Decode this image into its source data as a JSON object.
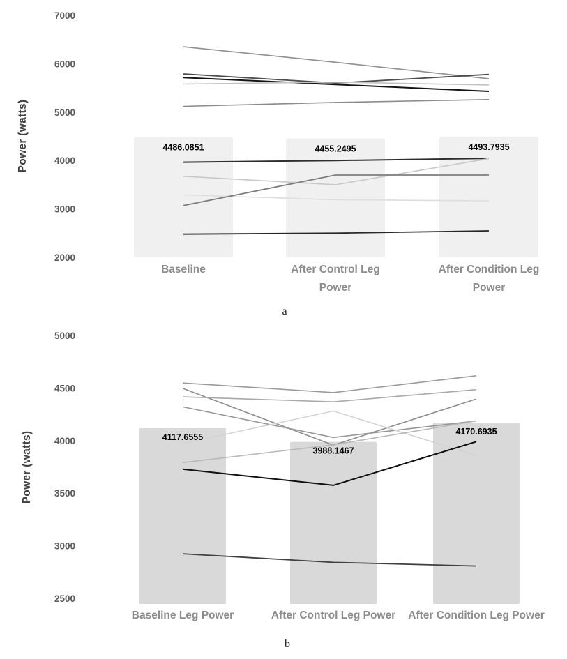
{
  "figure": {
    "background": "#ffffff",
    "captions": {
      "a": "a",
      "b": "b"
    }
  },
  "chart_data": [
    {
      "type": "combo-bar-line",
      "caption": "a",
      "ylabel": "Power (watts)",
      "ylim": [
        2000,
        7000
      ],
      "yticks": [
        7000,
        6000,
        5000,
        4000,
        3000,
        2000
      ],
      "grid": false,
      "legend": "none",
      "categories": [
        "Baseline",
        "After Control Leg Power",
        "After Condition Leg Power"
      ],
      "category_label_lines": [
        [
          "Baseline"
        ],
        [
          "After Control Leg",
          "Power"
        ],
        [
          "After Condition Leg",
          "Power"
        ]
      ],
      "bar_values": [
        4486.0851,
        4455.2495,
        4493.7935
      ],
      "bar_labels": [
        "4486.0851",
        "4455.2495",
        "4493.7935"
      ],
      "bar_color": "#f0f0f0",
      "line_series": [
        {
          "name": "upper-line-1",
          "color": "#8f8f8f",
          "width": 1.6,
          "values": [
            6350,
            6030,
            5690
          ]
        },
        {
          "name": "upper-line-2",
          "color": "#4d4d4d",
          "width": 1.8,
          "values": [
            5790,
            5600,
            5780
          ]
        },
        {
          "name": "upper-line-3",
          "color": "#141414",
          "width": 2.0,
          "values": [
            5715,
            5570,
            5430
          ]
        },
        {
          "name": "upper-line-4",
          "color": "#c2c2c2",
          "width": 1.6,
          "values": [
            5580,
            5620,
            5560
          ]
        },
        {
          "name": "upper-line-5",
          "color": "#8a8a8a",
          "width": 1.6,
          "values": [
            5120,
            5200,
            5260
          ]
        },
        {
          "name": "lower-line-1",
          "color": "#2e2e2e",
          "width": 2.0,
          "values": [
            3965,
            4000,
            4045
          ]
        },
        {
          "name": "lower-line-2",
          "color": "#c8c8c8",
          "width": 1.6,
          "values": [
            3675,
            3500,
            4040
          ]
        },
        {
          "name": "lower-line-3",
          "color": "#dedede",
          "width": 1.6,
          "values": [
            3290,
            3190,
            3165
          ]
        },
        {
          "name": "lower-line-4",
          "color": "#7d7d7d",
          "width": 1.8,
          "values": [
            3070,
            3700,
            3700
          ]
        },
        {
          "name": "lower-line-5",
          "color": "#262626",
          "width": 1.8,
          "values": [
            2480,
            2500,
            2548
          ]
        }
      ]
    },
    {
      "type": "combo-bar-line",
      "caption": "b",
      "ylabel": "Power (watts)",
      "ylim": [
        2500,
        5000
      ],
      "yticks": [
        5000,
        4500,
        4000,
        3500,
        3000,
        2500
      ],
      "grid": false,
      "legend": "none",
      "categories": [
        "Baseline Leg Power",
        "After Control Leg Power",
        "After Condition Leg Power"
      ],
      "category_label_lines": [
        [
          "Baseline Leg Power"
        ],
        [
          "After Control Leg Power"
        ],
        [
          "After Condition Leg Power"
        ]
      ],
      "bar_values": [
        4117.6555,
        3988.1467,
        4170.6935
      ],
      "bar_labels": [
        "4117.6555",
        "3988.1467",
        "4170.6935"
      ],
      "bar_color": "#d9d9d9",
      "line_series": [
        {
          "name": "line-1",
          "color": "#999999",
          "width": 1.6,
          "values": [
            4548,
            4457,
            4617
          ]
        },
        {
          "name": "line-2",
          "color": "#8f8f8f",
          "width": 1.6,
          "values": [
            4497,
            3957,
            4396
          ]
        },
        {
          "name": "line-3",
          "color": "#a9a9a9",
          "width": 1.6,
          "values": [
            4416,
            4369,
            4485
          ]
        },
        {
          "name": "line-4",
          "color": "#979797",
          "width": 1.6,
          "values": [
            4321,
            4030,
            4187
          ]
        },
        {
          "name": "line-5",
          "color": "#d3d3d3",
          "width": 1.6,
          "values": [
            3972,
            4281,
            3858
          ]
        },
        {
          "name": "line-6",
          "color": "#b9b9b9",
          "width": 1.6,
          "values": [
            3791,
            3960,
            4187
          ]
        },
        {
          "name": "line-7",
          "color": "#0f0f0f",
          "width": 2.0,
          "values": [
            3729,
            3575,
            3990
          ]
        },
        {
          "name": "line-8",
          "color": "#3f3f3f",
          "width": 1.8,
          "values": [
            2924,
            2842,
            2808
          ]
        }
      ]
    }
  ]
}
